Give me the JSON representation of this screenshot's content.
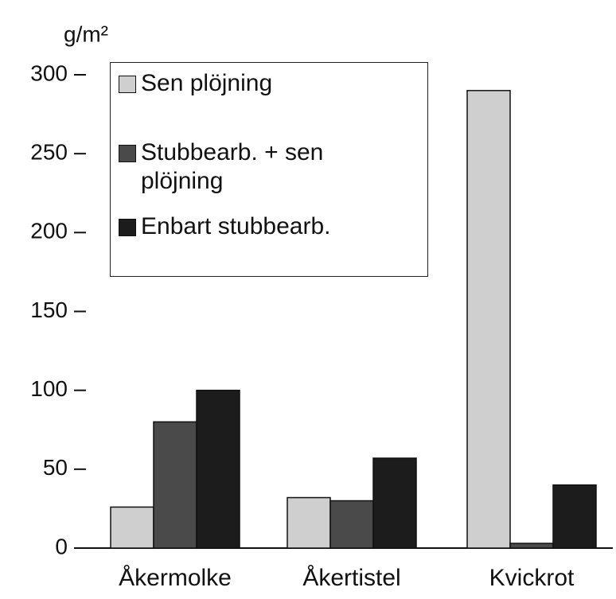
{
  "chart_data": {
    "type": "bar",
    "y_label": "g/m²",
    "categories": [
      "Åkermolke",
      "Åkertistel",
      "Kvickrot"
    ],
    "series": [
      {
        "name": "Sen plöjning",
        "color": "#cfcfcf",
        "values": [
          26,
          32,
          290
        ]
      },
      {
        "name": "Stubbearb. + sen plöjning",
        "color": "#4a4a4a",
        "values": [
          80,
          30,
          3
        ]
      },
      {
        "name": "Enbart stubbearb.",
        "color": "#1c1c1c",
        "values": [
          100,
          57,
          40
        ]
      }
    ],
    "ylim": [
      0,
      300
    ],
    "yticks": [
      0,
      50,
      100,
      150,
      200,
      250,
      300
    ]
  }
}
